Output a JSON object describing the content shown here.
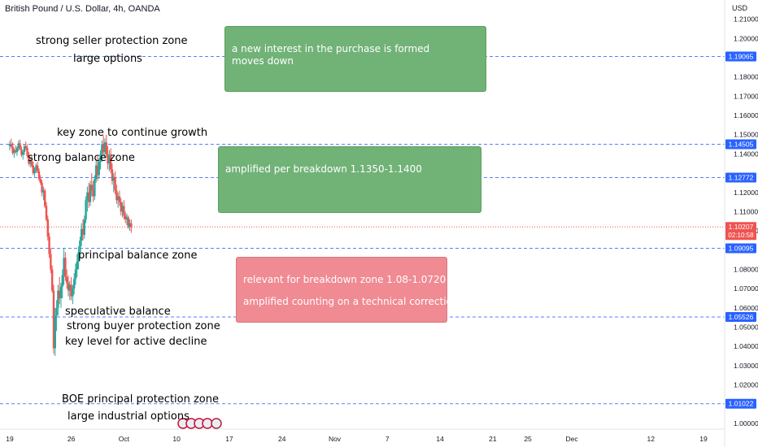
{
  "header": {
    "symbol_title": "British Pound / U.S. Dollar, 4h, OANDA",
    "currency": "USD"
  },
  "annotations": {
    "seller_zone": "strong seller protection zone",
    "large_options": "large options",
    "key_growth": "key zone to continue growth",
    "strong_balance": "strong balance zone",
    "principal_balance": "principal balance zone",
    "speculative_balance": "speculative balance",
    "buyer_zone": "strong buyer protection zone",
    "key_decline": "key level for active decline",
    "boe_zone": "BOE principal protection zone",
    "industrial_options": "large industrial options"
  },
  "boxes": {
    "top": {
      "line1": "a new interest in the purchase is formed",
      "line2": "moves down"
    },
    "middle": {
      "line1": "amplified per breakdown  1.1350-1.1400"
    },
    "bottom": {
      "line1": "relevant for breakdown zone 1.08-1.0720",
      "line2": "amplified counting on a technical correction"
    }
  },
  "colors": {
    "up": "#26a69a",
    "down": "#ef5350",
    "dashed_line": "#2962ff",
    "price_label": "#2962ff",
    "current_price": "#ef5350",
    "green_box": "#71b277",
    "red_box": "#f08a93"
  },
  "chart_data": {
    "type": "candlestick",
    "title": "British Pound / U.S. Dollar, 4h, OANDA",
    "ylabel": "USD",
    "ylim": [
      0.997,
      1.22
    ],
    "y_ticks": [
      "1.21000",
      "1.20000",
      "1.18000",
      "1.17000",
      "1.16000",
      "1.15000",
      "1.14000",
      "1.12000",
      "1.11000",
      "1.10000",
      "1.08000",
      "1.07000",
      "1.06000",
      "1.05000",
      "1.04000",
      "1.03000",
      "1.02000",
      "1.00000"
    ],
    "x_ticks": [
      "19",
      "26",
      "Oct",
      "10",
      "17",
      "24",
      "Nov",
      "7",
      "14",
      "21",
      "25",
      "Dec",
      "12",
      "19"
    ],
    "x_tick_index": [
      0,
      42,
      78,
      114,
      150,
      186,
      222,
      258,
      294,
      330,
      354,
      384,
      438,
      474
    ],
    "x_max_index": 484,
    "horizontal_levels": [
      {
        "price": "1.19065",
        "value": 1.19065
      },
      {
        "price": "1.14505",
        "value": 1.14505
      },
      {
        "price": "1.12772",
        "value": 1.12772
      },
      {
        "price": "1.09095",
        "value": 1.09095
      },
      {
        "price": "1.05526",
        "value": 1.05526
      },
      {
        "price": "1.01022",
        "value": 1.01022
      }
    ],
    "current_price": {
      "price": "1.10207",
      "value": 1.10207,
      "countdown": "02:10:58"
    },
    "candles": [
      [
        1.144,
        1.1468,
        1.1418,
        1.1452
      ],
      [
        1.1452,
        1.148,
        1.143,
        1.144
      ],
      [
        1.144,
        1.146,
        1.1395,
        1.1405
      ],
      [
        1.1405,
        1.143,
        1.138,
        1.142
      ],
      [
        1.142,
        1.1445,
        1.14,
        1.141
      ],
      [
        1.141,
        1.144,
        1.139,
        1.143
      ],
      [
        1.143,
        1.147,
        1.1415,
        1.1455
      ],
      [
        1.1455,
        1.1475,
        1.142,
        1.1425
      ],
      [
        1.1425,
        1.144,
        1.1385,
        1.1395
      ],
      [
        1.1395,
        1.142,
        1.137,
        1.141
      ],
      [
        1.141,
        1.145,
        1.1395,
        1.144
      ],
      [
        1.144,
        1.1465,
        1.142,
        1.143
      ],
      [
        1.143,
        1.145,
        1.138,
        1.139
      ],
      [
        1.139,
        1.141,
        1.134,
        1.135
      ],
      [
        1.135,
        1.138,
        1.133,
        1.1365
      ],
      [
        1.1365,
        1.139,
        1.133,
        1.134
      ],
      [
        1.134,
        1.136,
        1.129,
        1.13
      ],
      [
        1.13,
        1.133,
        1.128,
        1.132
      ],
      [
        1.132,
        1.135,
        1.13,
        1.134
      ],
      [
        1.134,
        1.136,
        1.13,
        1.131
      ],
      [
        1.131,
        1.1325,
        1.126,
        1.127
      ],
      [
        1.127,
        1.129,
        1.124,
        1.125
      ],
      [
        1.125,
        1.1265,
        1.118,
        1.12
      ],
      [
        1.12,
        1.123,
        1.116,
        1.121
      ],
      [
        1.121,
        1.122,
        1.112,
        1.113
      ],
      [
        1.113,
        1.115,
        1.105,
        1.106
      ],
      [
        1.106,
        1.108,
        1.095,
        1.097
      ],
      [
        1.097,
        1.099,
        1.086,
        1.088
      ],
      [
        1.088,
        1.091,
        1.078,
        1.08
      ],
      [
        1.08,
        1.082,
        1.068,
        1.069
      ],
      [
        1.069,
        1.072,
        1.036,
        1.039
      ],
      [
        1.039,
        1.06,
        1.035,
        1.056
      ],
      [
        1.056,
        1.064,
        1.048,
        1.06
      ],
      [
        1.06,
        1.072,
        1.056,
        1.069
      ],
      [
        1.069,
        1.076,
        1.062,
        1.065
      ],
      [
        1.065,
        1.073,
        1.06,
        1.071
      ],
      [
        1.071,
        1.08,
        1.065,
        1.077
      ],
      [
        1.077,
        1.091,
        1.072,
        1.086
      ],
      [
        1.086,
        1.089,
        1.074,
        1.076
      ],
      [
        1.076,
        1.08,
        1.07,
        1.073
      ],
      [
        1.073,
        1.077,
        1.066,
        1.069
      ],
      [
        1.069,
        1.074,
        1.064,
        1.072
      ],
      [
        1.072,
        1.076,
        1.064,
        1.066
      ],
      [
        1.066,
        1.072,
        1.062,
        1.07
      ],
      [
        1.07,
        1.078,
        1.067,
        1.075
      ],
      [
        1.075,
        1.083,
        1.072,
        1.08
      ],
      [
        1.08,
        1.088,
        1.076,
        1.084
      ],
      [
        1.084,
        1.092,
        1.08,
        1.089
      ],
      [
        1.089,
        1.097,
        1.086,
        1.095
      ],
      [
        1.095,
        1.104,
        1.092,
        1.101
      ],
      [
        1.101,
        1.106,
        1.095,
        1.098
      ],
      [
        1.098,
        1.108,
        1.096,
        1.106
      ],
      [
        1.106,
        1.118,
        1.104,
        1.116
      ],
      [
        1.116,
        1.123,
        1.11,
        1.12
      ],
      [
        1.12,
        1.125,
        1.112,
        1.115
      ],
      [
        1.115,
        1.126,
        1.113,
        1.124
      ],
      [
        1.124,
        1.13,
        1.118,
        1.121
      ],
      [
        1.121,
        1.126,
        1.115,
        1.118
      ],
      [
        1.118,
        1.129,
        1.116,
        1.127
      ],
      [
        1.127,
        1.137,
        1.125,
        1.134
      ],
      [
        1.134,
        1.139,
        1.126,
        1.129
      ],
      [
        1.129,
        1.138,
        1.127,
        1.136
      ],
      [
        1.136,
        1.142,
        1.132,
        1.14
      ],
      [
        1.14,
        1.147,
        1.136,
        1.145
      ],
      [
        1.145,
        1.1495,
        1.139,
        1.141
      ],
      [
        1.141,
        1.148,
        1.138,
        1.146
      ],
      [
        1.146,
        1.15,
        1.138,
        1.14
      ],
      [
        1.14,
        1.144,
        1.132,
        1.135
      ],
      [
        1.135,
        1.142,
        1.131,
        1.139
      ],
      [
        1.139,
        1.143,
        1.13,
        1.132
      ],
      [
        1.132,
        1.135,
        1.124,
        1.126
      ],
      [
        1.126,
        1.13,
        1.12,
        1.128
      ],
      [
        1.128,
        1.131,
        1.119,
        1.121
      ],
      [
        1.121,
        1.124,
        1.114,
        1.116
      ],
      [
        1.116,
        1.12,
        1.112,
        1.118
      ],
      [
        1.118,
        1.121,
        1.113,
        1.115
      ],
      [
        1.115,
        1.117,
        1.108,
        1.11
      ],
      [
        1.11,
        1.115,
        1.107,
        1.113
      ],
      [
        1.113,
        1.116,
        1.106,
        1.108
      ],
      [
        1.108,
        1.11,
        1.104,
        1.106
      ],
      [
        1.106,
        1.109,
        1.103,
        1.107
      ],
      [
        1.107,
        1.108,
        1.101,
        1.102
      ],
      [
        1.102,
        1.106,
        1.1,
        1.104
      ],
      [
        1.104,
        1.106,
        1.099,
        1.102
      ]
    ]
  }
}
